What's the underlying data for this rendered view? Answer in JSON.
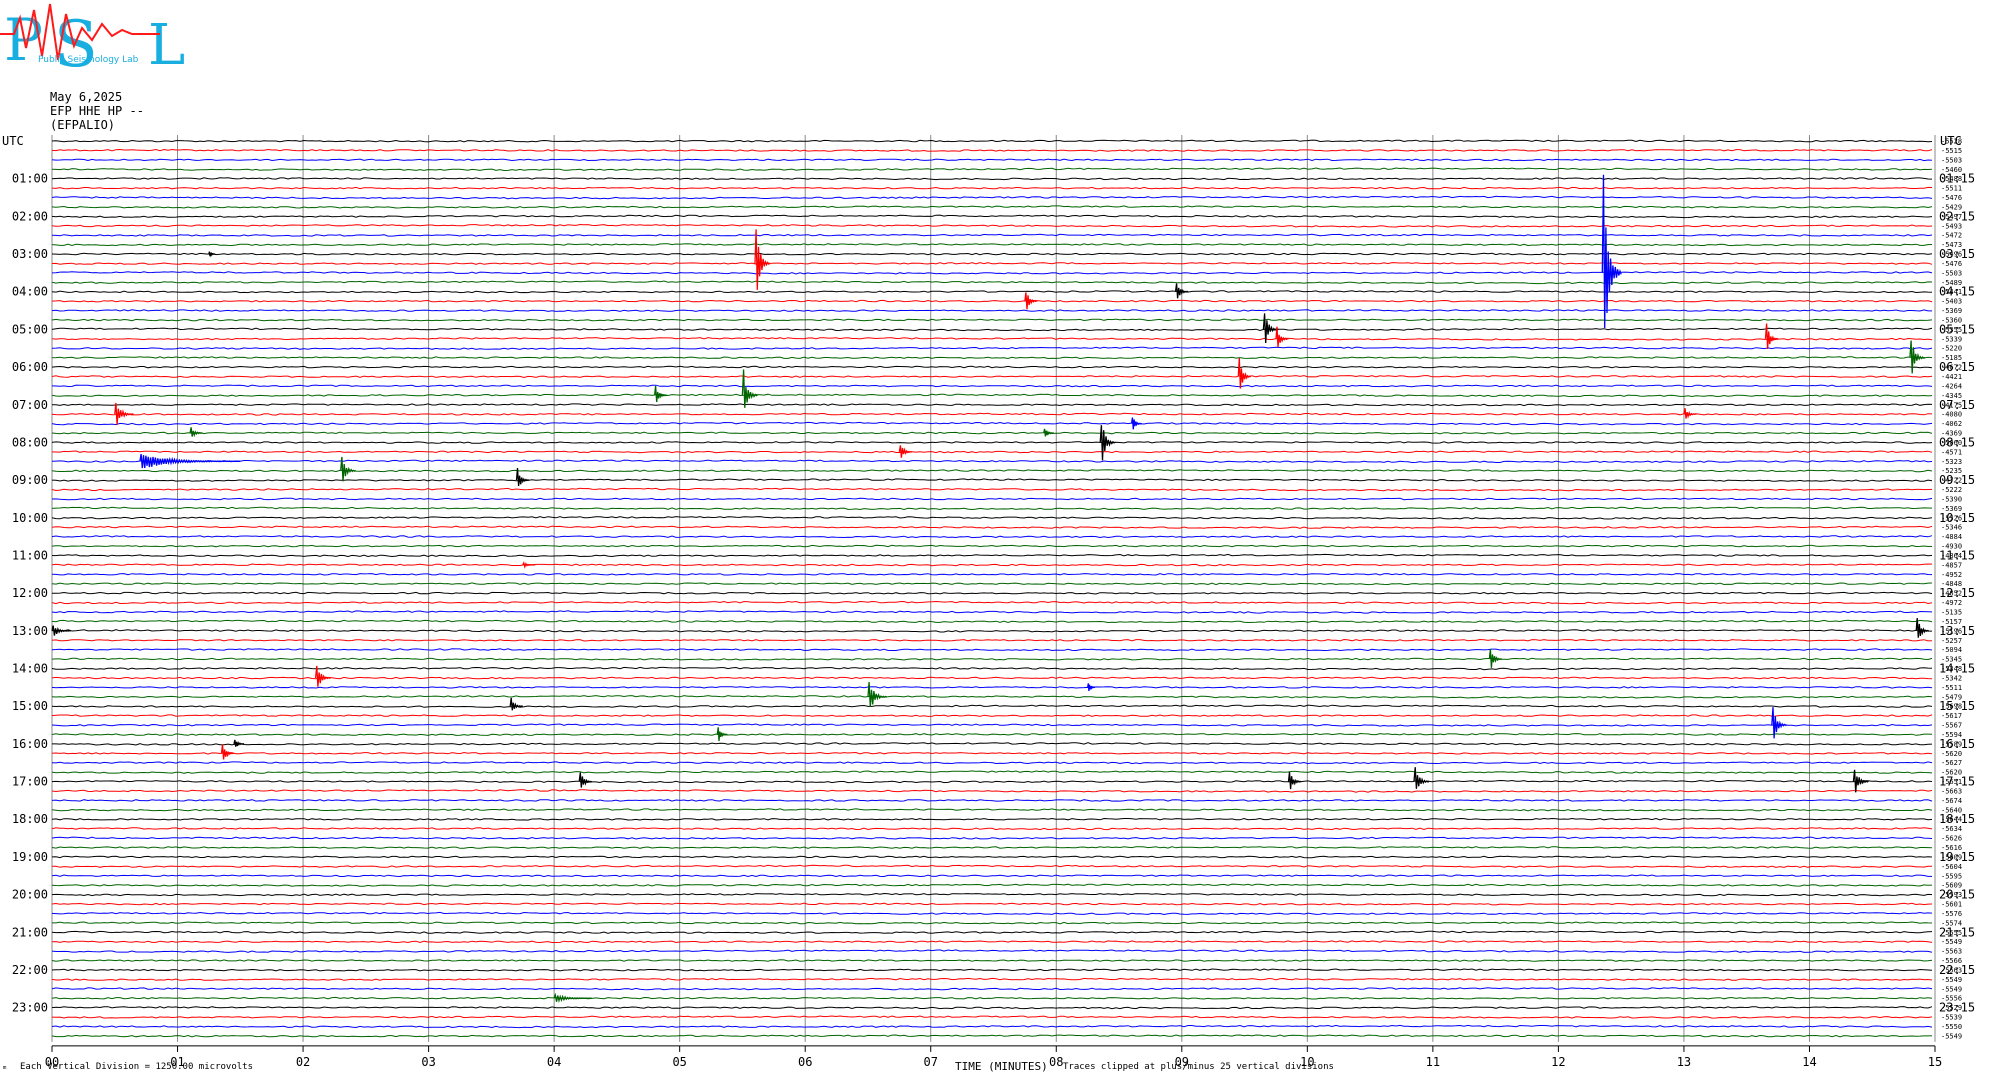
{
  "logo": {
    "letters": [
      "P",
      "S",
      "L"
    ],
    "text": "Public Seismology Lab",
    "colors": {
      "main": "#19aee0",
      "accent": "#ff1a1a"
    }
  },
  "header": {
    "date": "May 6,2025",
    "channel": "EFP HHE HP --",
    "station": "(EFPALIO)"
  },
  "footer": {
    "left_mark": "ₘ",
    "scale": "Each Vertical Division = 1250.00 microvolts",
    "xlabel": "TIME (MINUTES)",
    "clip_note": "Traces clipped at plus/minus 25 vertical divisions"
  },
  "colors": {
    "trace_cycle": [
      "#000000",
      "#ff0000",
      "#0000ff",
      "#006400"
    ],
    "grid": "#888888"
  },
  "chart_data": {
    "type": "line",
    "title": "",
    "xlabel": "TIME (MINUTES)",
    "xlim": [
      0,
      15
    ],
    "x_ticks": [
      "00",
      "01",
      "02",
      "03",
      "04",
      "05",
      "06",
      "07",
      "08",
      "09",
      "10",
      "11",
      "12",
      "13",
      "14",
      "15"
    ],
    "rows": 96,
    "left_axis_label": "UTC",
    "right_axis_label": "UTC",
    "left_hour_labels": [
      "01:00",
      "02:00",
      "03:00",
      "04:00",
      "05:00",
      "06:00",
      "07:00",
      "08:00",
      "09:00",
      "10:00",
      "11:00",
      "12:00",
      "13:00",
      "14:00",
      "15:00",
      "16:00",
      "17:00",
      "18:00",
      "19:00",
      "20:00",
      "21:00",
      "22:00",
      "23:00"
    ],
    "right_hour_labels": [
      "01:15",
      "02:15",
      "03:15",
      "04:15",
      "05:15",
      "06:15",
      "07:15",
      "08:15",
      "09:15",
      "10:15",
      "11:15",
      "12:15",
      "13:15",
      "14:15",
      "15:15",
      "16:15",
      "17:15",
      "18:15",
      "19:15",
      "20:15",
      "21:15",
      "22:15",
      "23:15"
    ],
    "row_offsets": [
      -5528,
      -5515,
      -5503,
      -5460,
      -5488,
      -5511,
      -5476,
      -5429,
      -5497,
      -5493,
      -5472,
      -5473,
      -5496,
      -5476,
      -5503,
      -5489,
      -5441,
      -5403,
      -5369,
      -5360,
      -5355,
      -5339,
      -5220,
      -5185,
      -4672,
      -4421,
      -4264,
      -4345,
      -4175,
      -4080,
      -4062,
      -4369,
      -5060,
      -4571,
      -5323,
      -5235,
      -4722,
      -5222,
      -5390,
      -5369,
      -5526,
      -5346,
      -4884,
      -4930,
      -4864,
      -4857,
      -4952,
      -4848,
      -4852,
      -4972,
      -5135,
      -5157,
      -5196,
      -5257,
      -5094,
      -5345,
      -5348,
      -5342,
      -5511,
      -5479,
      -5698,
      -5617,
      -5567,
      -5594,
      -5589,
      -5620,
      -5627,
      -5620,
      -5651,
      -5663,
      -5674,
      -5640,
      -5644,
      -5634,
      -5626,
      -5616,
      -5609,
      -5604,
      -5595,
      -5609,
      -5593,
      -5601,
      -5576,
      -5574,
      -5555,
      -5549,
      -5563,
      -5566,
      -5563,
      -5549,
      -5549,
      -5556,
      -5529,
      -5539,
      -5550,
      -5549
    ],
    "events": [
      {
        "row": 12,
        "minute": 1.25,
        "amp": 1,
        "dur": 0.05
      },
      {
        "row": 13,
        "minute": 5.6,
        "amp": 12,
        "dur": 0.12
      },
      {
        "row": 14,
        "minute": 12.35,
        "amp": 30,
        "dur": 0.15
      },
      {
        "row": 16,
        "minute": 8.95,
        "amp": 4,
        "dur": 0.1
      },
      {
        "row": 17,
        "minute": 7.75,
        "amp": 4,
        "dur": 0.1
      },
      {
        "row": 20,
        "minute": 9.65,
        "amp": 6,
        "dur": 0.12
      },
      {
        "row": 21,
        "minute": 9.75,
        "amp": 4,
        "dur": 0.1
      },
      {
        "row": 21,
        "minute": 13.65,
        "amp": 5,
        "dur": 0.1
      },
      {
        "row": 23,
        "minute": 14.8,
        "amp": 7,
        "dur": 0.12
      },
      {
        "row": 25,
        "minute": 9.45,
        "amp": 6,
        "dur": 0.1
      },
      {
        "row": 27,
        "minute": 4.8,
        "amp": 3,
        "dur": 0.1
      },
      {
        "row": 27,
        "minute": 5.5,
        "amp": 8,
        "dur": 0.12
      },
      {
        "row": 29,
        "minute": 0.5,
        "amp": 4,
        "dur": 0.15
      },
      {
        "row": 29,
        "minute": 13.0,
        "amp": 2,
        "dur": 0.1
      },
      {
        "row": 30,
        "minute": 8.6,
        "amp": 3,
        "dur": 0.08
      },
      {
        "row": 31,
        "minute": 1.1,
        "amp": 2,
        "dur": 0.1
      },
      {
        "row": 31,
        "minute": 7.9,
        "amp": 2,
        "dur": 0.08
      },
      {
        "row": 32,
        "minute": 8.35,
        "amp": 8,
        "dur": 0.12
      },
      {
        "row": 33,
        "minute": 6.75,
        "amp": 3,
        "dur": 0.1
      },
      {
        "row": 34,
        "minute": 0.7,
        "amp": 2,
        "dur": 0.8
      },
      {
        "row": 35,
        "minute": 2.3,
        "amp": 5,
        "dur": 0.12
      },
      {
        "row": 36,
        "minute": 3.7,
        "amp": 4,
        "dur": 0.1
      },
      {
        "row": 45,
        "minute": 3.75,
        "amp": 1,
        "dur": 0.1
      },
      {
        "row": 52,
        "minute": 0.0,
        "amp": 2,
        "dur": 0.15
      },
      {
        "row": 52,
        "minute": 14.85,
        "amp": 5,
        "dur": 0.1
      },
      {
        "row": 55,
        "minute": 11.45,
        "amp": 4,
        "dur": 0.1
      },
      {
        "row": 57,
        "minute": 2.1,
        "amp": 5,
        "dur": 0.12
      },
      {
        "row": 58,
        "minute": 8.25,
        "amp": 2,
        "dur": 0.06
      },
      {
        "row": 59,
        "minute": 6.5,
        "amp": 5,
        "dur": 0.15
      },
      {
        "row": 60,
        "minute": 3.65,
        "amp": 3,
        "dur": 0.1
      },
      {
        "row": 62,
        "minute": 13.7,
        "amp": 6,
        "dur": 0.12
      },
      {
        "row": 63,
        "minute": 5.3,
        "amp": 3,
        "dur": 0.08
      },
      {
        "row": 64,
        "minute": 1.45,
        "amp": 2,
        "dur": 0.08
      },
      {
        "row": 65,
        "minute": 1.35,
        "amp": 4,
        "dur": 0.1
      },
      {
        "row": 68,
        "minute": 4.2,
        "amp": 4,
        "dur": 0.1
      },
      {
        "row": 68,
        "minute": 9.85,
        "amp": 4,
        "dur": 0.1
      },
      {
        "row": 68,
        "minute": 10.85,
        "amp": 5,
        "dur": 0.12
      },
      {
        "row": 68,
        "minute": 14.35,
        "amp": 5,
        "dur": 0.12
      },
      {
        "row": 91,
        "minute": 4.0,
        "amp": 1,
        "dur": 0.3
      }
    ]
  }
}
